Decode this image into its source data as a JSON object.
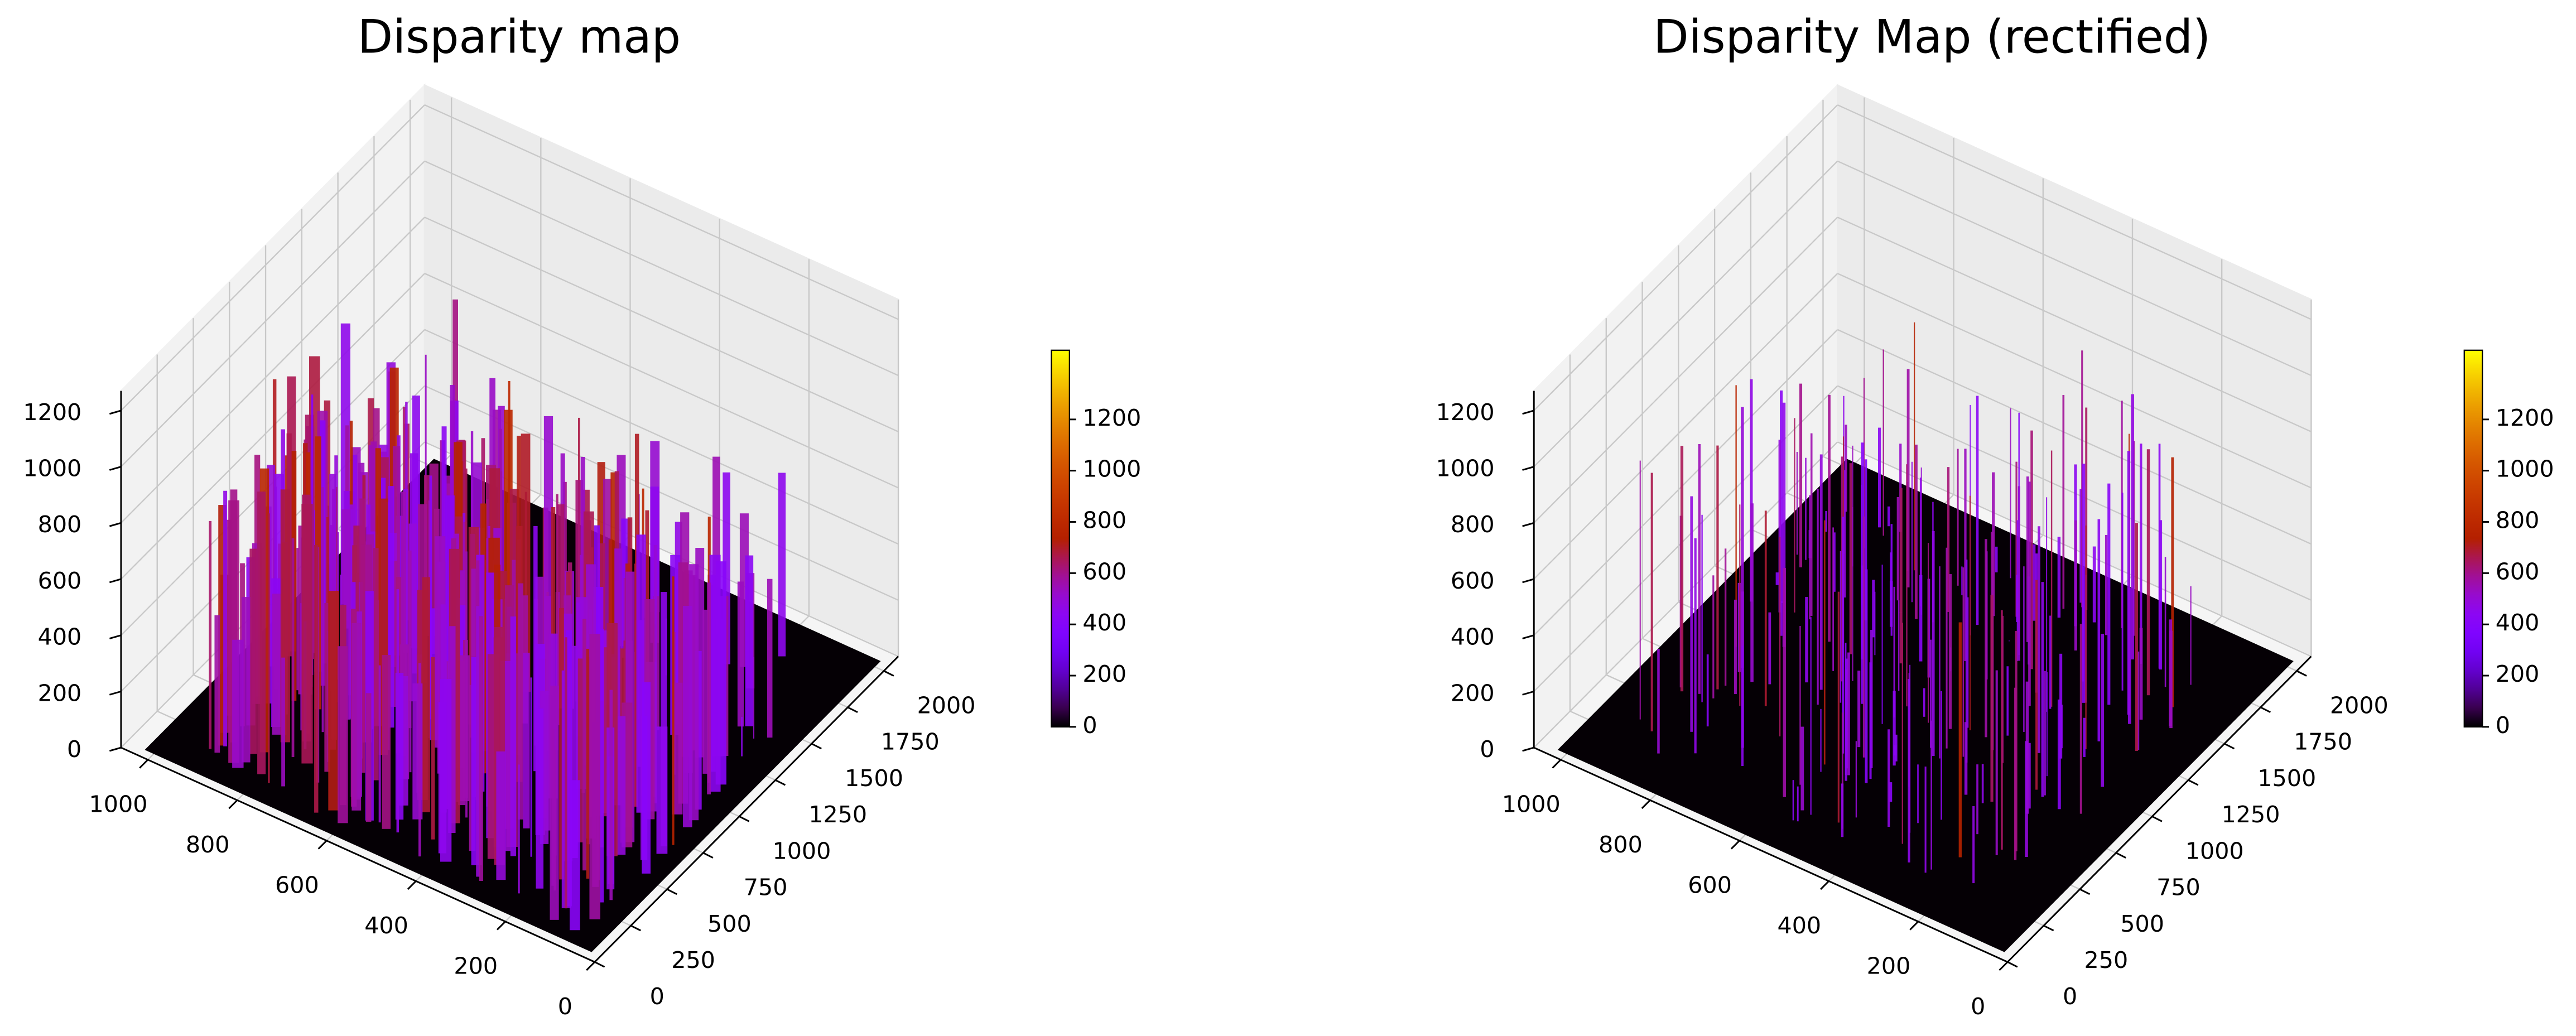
{
  "chart_data": [
    {
      "type": "surface3d",
      "title": "Disparity map",
      "colormap": "gnuplot",
      "xlim": [
        0,
        2100
      ],
      "ylim": [
        0,
        1060
      ],
      "zlim": [
        0,
        1270
      ],
      "clim": [
        0,
        1470
      ],
      "xticks": [
        0,
        250,
        500,
        750,
        1000,
        1250,
        1500,
        1750,
        2000
      ],
      "yticks": [
        0,
        200,
        400,
        600,
        800,
        1000
      ],
      "zticks": [
        0,
        200,
        400,
        600,
        800,
        1000,
        1200
      ],
      "cticks": [
        0,
        200,
        400,
        600,
        800,
        1000,
        1200
      ],
      "grid": true
    },
    {
      "type": "surface3d",
      "title": "Disparity Map (rectified)",
      "colormap": "gnuplot",
      "xlim": [
        0,
        2100
      ],
      "ylim": [
        0,
        1060
      ],
      "zlim": [
        0,
        1270
      ],
      "clim": [
        0,
        1470
      ],
      "xticks": [
        0,
        250,
        500,
        750,
        1000,
        1250,
        1500,
        1750,
        2000
      ],
      "yticks": [
        0,
        200,
        400,
        600,
        800,
        1000
      ],
      "zticks": [
        0,
        200,
        400,
        600,
        800,
        1000,
        1200
      ],
      "cticks": [
        0,
        200,
        400,
        600,
        800,
        1000,
        1200
      ],
      "grid": true
    }
  ]
}
